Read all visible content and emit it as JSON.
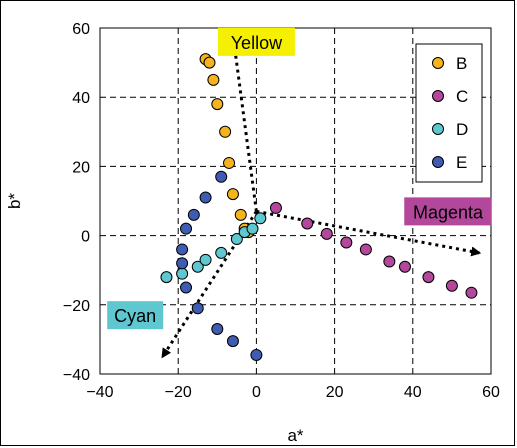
{
  "chart_data": {
    "type": "scatter",
    "title": "",
    "xlabel": "a*",
    "ylabel": "b*",
    "xlim": [
      -40,
      60
    ],
    "ylim": [
      -40,
      60
    ],
    "x_ticks": [
      "−40",
      "−20",
      "0",
      "20",
      "40",
      "60"
    ],
    "y_ticks": [
      "−40",
      "−20",
      "0",
      "20",
      "40",
      "60"
    ],
    "grid": "dashed",
    "legend_position": "top-right",
    "series": [
      {
        "name": "B",
        "color": "#f5b41e",
        "points": [
          [
            -13,
            51
          ],
          [
            -12,
            50
          ],
          [
            -11,
            45
          ],
          [
            -10,
            38
          ],
          [
            -8,
            30
          ],
          [
            -7,
            21
          ],
          [
            -6,
            12
          ],
          [
            -4,
            6
          ],
          [
            -3,
            2
          ],
          [
            -2,
            1
          ]
        ]
      },
      {
        "name": "C",
        "color": "#b2479b",
        "points": [
          [
            5,
            8
          ],
          [
            13,
            3.5
          ],
          [
            18,
            0.5
          ],
          [
            23,
            -2
          ],
          [
            28,
            -4
          ],
          [
            34,
            -7.5
          ],
          [
            38,
            -9
          ],
          [
            44,
            -12
          ],
          [
            50,
            -14.5
          ],
          [
            55,
            -16.5
          ]
        ]
      },
      {
        "name": "D",
        "color": "#5ec7cf",
        "points": [
          [
            -23,
            -12
          ],
          [
            -19,
            -11
          ],
          [
            -15,
            -9
          ],
          [
            -13,
            -7
          ],
          [
            -9,
            -5
          ],
          [
            -5,
            -1
          ],
          [
            -3,
            1
          ],
          [
            -1,
            2
          ],
          [
            1,
            5
          ]
        ]
      },
      {
        "name": "E",
        "color": "#3f5cb3",
        "points": [
          [
            -9,
            17
          ],
          [
            -13,
            11
          ],
          [
            -16,
            6
          ],
          [
            -18,
            2
          ],
          [
            -19,
            -4
          ],
          [
            -19,
            -8
          ],
          [
            -18,
            -15
          ],
          [
            -15,
            -21
          ],
          [
            -10,
            -27
          ],
          [
            -6,
            -30.5
          ],
          [
            0,
            -34.5
          ]
        ]
      }
    ],
    "annotations": [
      {
        "label": "Yellow",
        "color": "#f5ef00",
        "x": 0,
        "y": 56
      },
      {
        "label": "Magenta",
        "color": "#b2479b",
        "x": 49,
        "y": 7
      },
      {
        "label": "Cyan",
        "color": "#5ec7cf",
        "x": -31,
        "y": -23
      }
    ],
    "arrows": [
      {
        "from": [
          0,
          7
        ],
        "to": [
          -6,
          58
        ]
      },
      {
        "from": [
          0,
          7
        ],
        "to": [
          57,
          -5
        ]
      },
      {
        "from": [
          0,
          7
        ],
        "to": [
          -24,
          -35
        ]
      }
    ]
  }
}
